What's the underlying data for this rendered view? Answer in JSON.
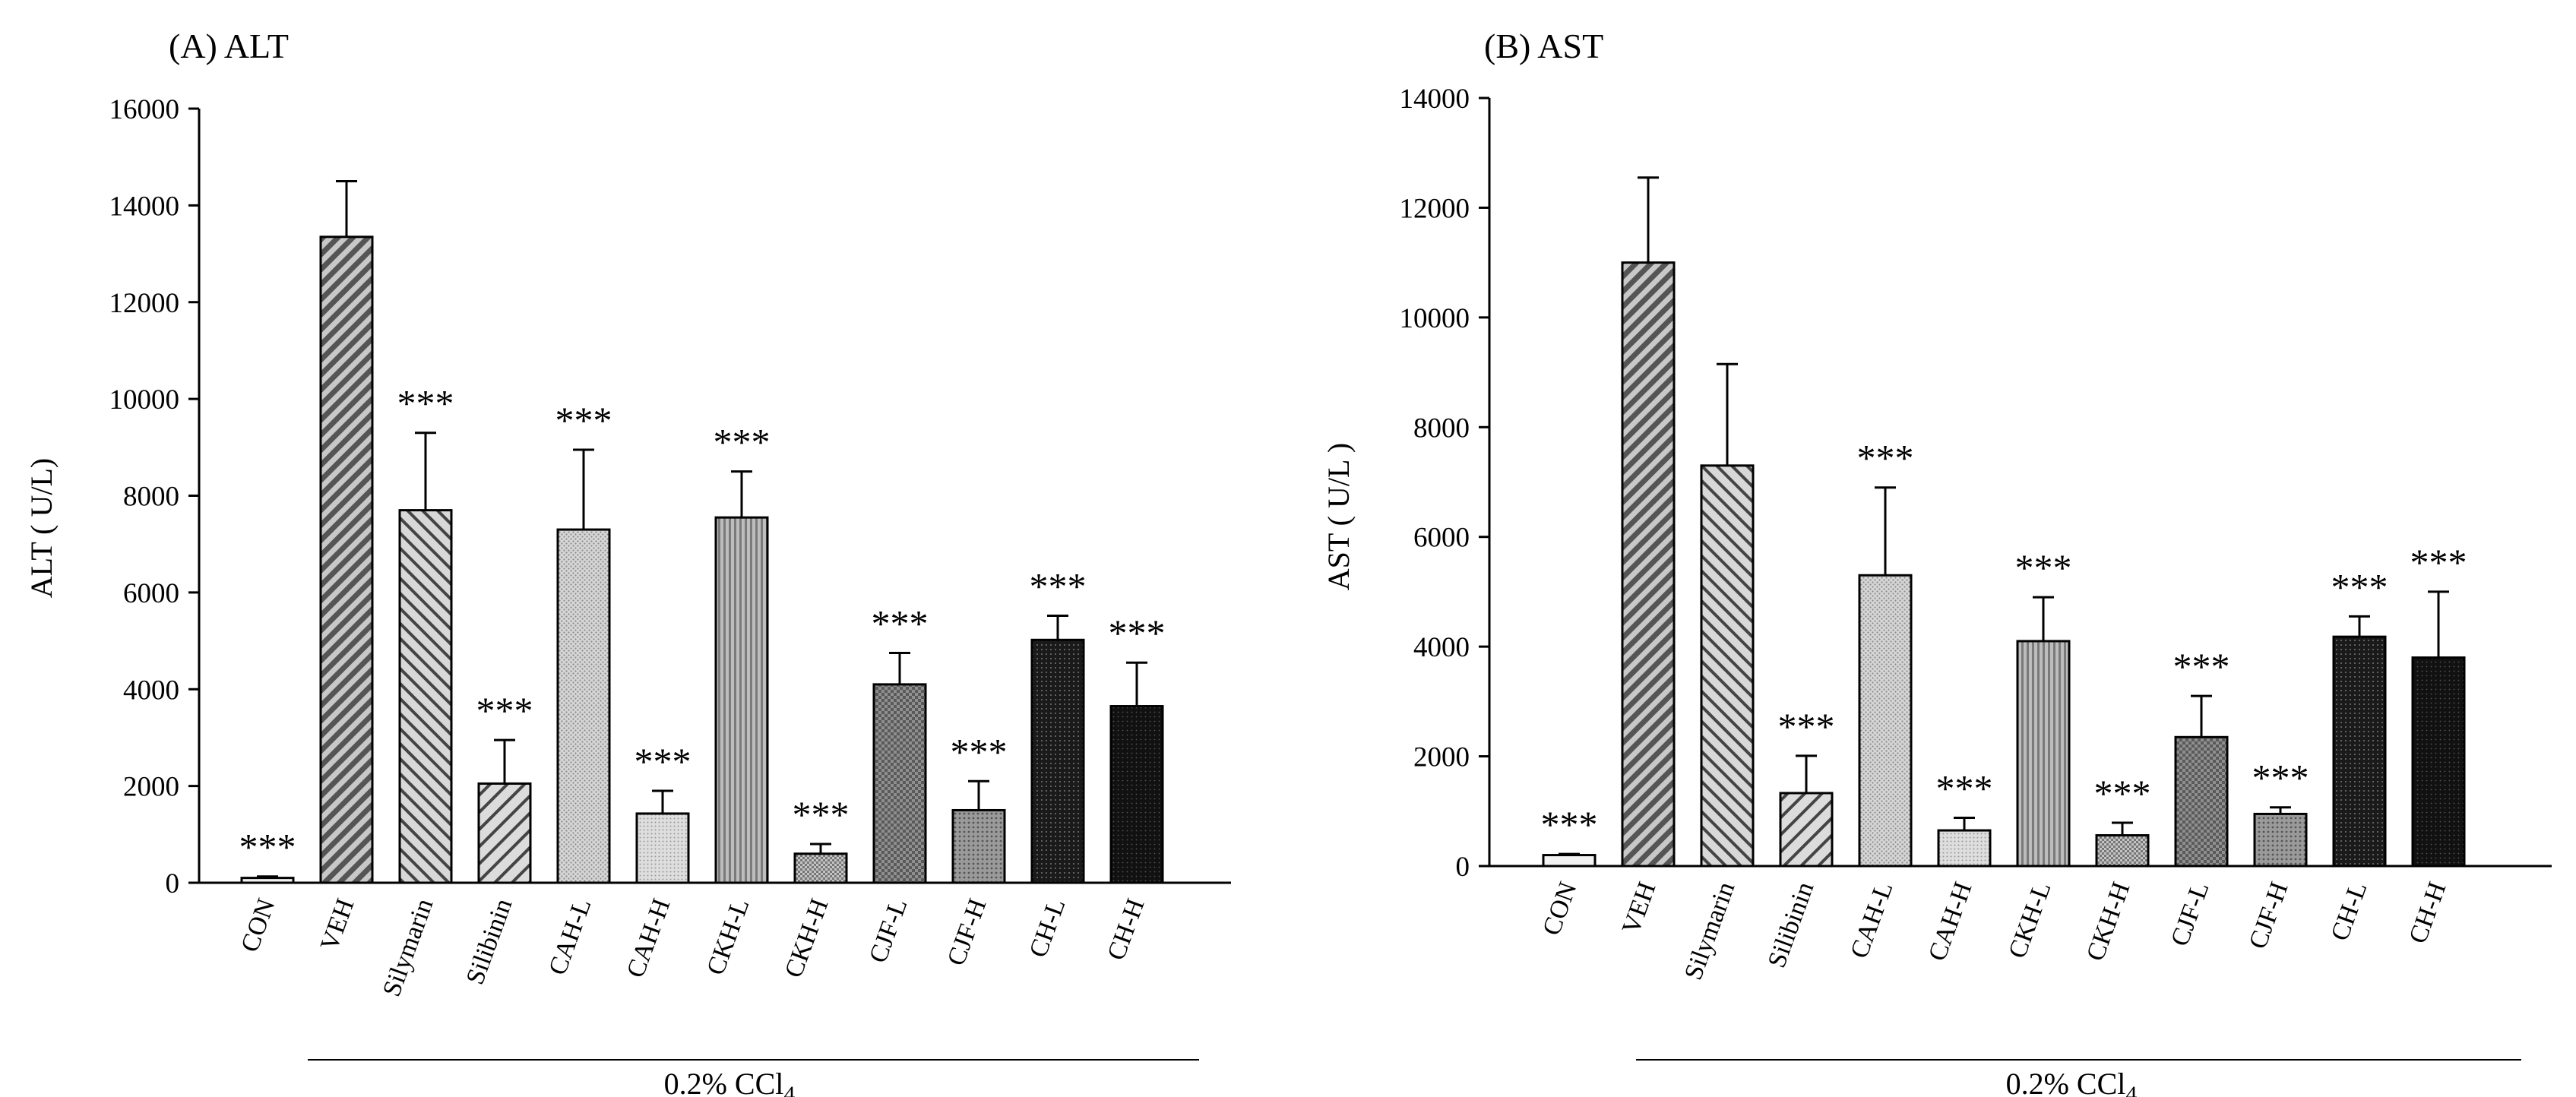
{
  "figure": {
    "group_label": "0.2% CCl",
    "group_label_sub": "4",
    "significance_marker": "***"
  },
  "chart_data": [
    {
      "type": "bar",
      "panel_title": "(A) ALT",
      "ylabel": "ALT ( U/L)",
      "xlabel": "",
      "ylim": [
        0,
        16000
      ],
      "yticks": [
        0,
        2000,
        4000,
        6000,
        8000,
        10000,
        12000,
        14000,
        16000
      ],
      "grid": false,
      "categories": [
        "CON",
        "VEH",
        "Silymarin",
        "Silibinin",
        "CAH-L",
        "CAH-H",
        "CKH-L",
        "CKH-H",
        "CJF-L",
        "CJF-H",
        "CH-L",
        "CH-H"
      ],
      "series": [
        {
          "name": "ALT",
          "values": [
            100,
            13350,
            7700,
            2050,
            7300,
            1430,
            7550,
            600,
            4100,
            1500,
            5020,
            3650
          ],
          "errors": [
            30,
            1150,
            1600,
            900,
            1650,
            470,
            950,
            200,
            650,
            600,
            500,
            900
          ]
        }
      ],
      "significance": [
        "***",
        "",
        "***",
        "***",
        "***",
        "***",
        "***",
        "***",
        "***",
        "***",
        "***",
        "***"
      ]
    },
    {
      "type": "bar",
      "panel_title": "(B) AST",
      "ylabel": "AST ( U/L )",
      "xlabel": "",
      "ylim": [
        0,
        14000
      ],
      "yticks": [
        0,
        2000,
        4000,
        6000,
        8000,
        10000,
        12000,
        14000
      ],
      "grid": false,
      "categories": [
        "CON",
        "VEH",
        "Silymarin",
        "Silibinin",
        "CAH-L",
        "CAH-H",
        "CKH-L",
        "CKH-H",
        "CJF-L",
        "CJF-H",
        "CH-L",
        "CH-H"
      ],
      "series": [
        {
          "name": "AST",
          "values": [
            200,
            11000,
            7300,
            1330,
            5300,
            650,
            4100,
            560,
            2350,
            950,
            4180,
            3800
          ],
          "errors": [
            20,
            1550,
            1850,
            680,
            1600,
            230,
            800,
            230,
            750,
            120,
            370,
            1200
          ]
        }
      ],
      "significance": [
        "***",
        "",
        "",
        "***",
        "***",
        "***",
        "***",
        "***",
        "***",
        "***",
        "***",
        "***"
      ]
    }
  ]
}
